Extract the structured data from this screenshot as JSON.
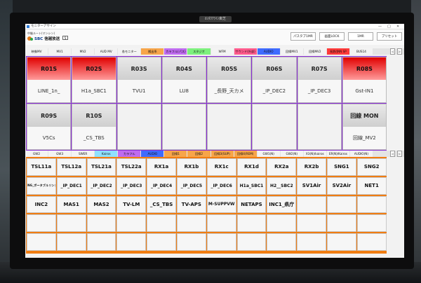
{
  "window": {
    "title": "モニターアサイン",
    "minimize": "—",
    "maximize": "□",
    "close": "✕"
  },
  "monitor": {
    "badge": "ｶﾝﾀｸｱﾗｲﾝ東芝"
  },
  "header": {
    "logo_line1": "中継ルート(マンシン)",
    "logo_brand": "SBC",
    "logo_text": "信越放送",
    "logo_num": "5",
    "btn_pasmachi": "パスタブ1MR",
    "btn_lock": "画面LOCK",
    "btn_1mr": "1MR",
    "btn_preset": "プリセット"
  },
  "tabs1": [
    {
      "label": "映像MV",
      "color": "#f3f3f3"
    },
    {
      "label": "MV1",
      "color": "#f3f3f3"
    },
    {
      "label": "MV2",
      "color": "#f3f3f3"
    },
    {
      "label": "AUD MV",
      "color": "#f3f3f3"
    },
    {
      "label": "各モニター",
      "color": "#f3f3f3"
    },
    {
      "label": "搬出系",
      "color": "#f7a54a"
    },
    {
      "label": "カラフル(パス)",
      "color": "#bf6bf0"
    },
    {
      "label": "スタジオ",
      "color": "#7df07d"
    },
    {
      "label": "WFM",
      "color": "#f3f3f3"
    },
    {
      "label": "サウンド(外部)",
      "color": "#ff5a8c"
    },
    {
      "label": "AUDIO",
      "color": "#3f6bff"
    },
    {
      "label": "回線MV1",
      "color": "#f3f3f3"
    },
    {
      "label": "回線MV2",
      "color": "#f3f3f3"
    },
    {
      "label": "長野/JNN SP",
      "color": "#ff3a3a"
    },
    {
      "label": "BUS14",
      "color": "#f3f3f3"
    }
  ],
  "tabs2": [
    {
      "label": "GW2",
      "color": "#f3f3f3"
    },
    {
      "label": "GW3",
      "color": "#f3f3f3"
    },
    {
      "label": "SWER",
      "color": "#f3f3f3"
    },
    {
      "label": "Kairos",
      "color": "#8fe0ff"
    },
    {
      "label": "カラフル",
      "color": "#bf6bf0"
    },
    {
      "label": "AUDIO",
      "color": "#3f6bff"
    },
    {
      "label": "回線1",
      "color": "#f7a54a"
    },
    {
      "label": "回線2",
      "color": "#f7a54a"
    },
    {
      "label": "回線3(SUP)",
      "color": "#f7a54a"
    },
    {
      "label": "回線4(REM)",
      "color": "#f7a54a"
    },
    {
      "label": "GW1(N)",
      "color": "#f3f3f3"
    },
    {
      "label": "GW2(N)",
      "color": "#f3f3f3"
    },
    {
      "label": "X3(N)/kairos",
      "color": "#f3f3f3"
    },
    {
      "label": "ER(N)/Kairos",
      "color": "#f3f3f3"
    },
    {
      "label": "AUDIO(N)",
      "color": "#f3f3f3"
    }
  ],
  "monitors": [
    {
      "id": "R01S",
      "src": "LINE_1n_",
      "red": true
    },
    {
      "id": "R02S",
      "src": "H1a_SBC1",
      "red": true
    },
    {
      "id": "R03S",
      "src": "TVU1",
      "red": false
    },
    {
      "id": "R04S",
      "src": "LU8",
      "red": false
    },
    {
      "id": "R05S",
      "src": "_長野_天カメ",
      "red": false
    },
    {
      "id": "R06S",
      "src": "_IP_DEC2",
      "red": false
    },
    {
      "id": "R07S",
      "src": "_IP_DEC3",
      "red": false
    },
    {
      "id": "R08S",
      "src": "Gst-IN1",
      "red": true
    },
    {
      "id": "R09S",
      "src": "V5Cs",
      "red": false
    },
    {
      "id": "R10S",
      "src": "_CS_TBS",
      "red": false
    },
    {
      "id": "",
      "src": "",
      "red": false
    },
    {
      "id": "",
      "src": "",
      "red": false
    },
    {
      "id": "",
      "src": "",
      "red": false
    },
    {
      "id": "",
      "src": "",
      "red": false
    },
    {
      "id": "",
      "src": "",
      "red": false
    },
    {
      "id": "回線 MON",
      "src": "回線_MV2",
      "red": false
    }
  ],
  "sources": [
    "TSL11a",
    "TSL12a",
    "TSL21a",
    "TSL22a",
    "RX1a",
    "RX1b",
    "RX1c",
    "RX1d",
    "RX2a",
    "RX2b",
    "SNG1",
    "SNG2",
    "SNG_ポータブルリンク",
    "_IP_DEC1",
    "_IP_DEC2",
    "_IP_DEC3",
    "_IP_DEC4",
    "_IP_DEC5",
    "_IP_DEC6",
    "H1a_SBC1",
    "H2__SBC2",
    "SV1Air",
    "SV2Air",
    "NET1",
    "INC2",
    "MAS1",
    "MAS2",
    "TV-LM",
    "_CS_TBS",
    "TV-APS",
    "M-SUPPVW",
    "NETAPS",
    "INC1_県庁",
    "",
    "",
    ""
  ],
  "scroll": {
    "left": "◁",
    "right": "▷"
  }
}
